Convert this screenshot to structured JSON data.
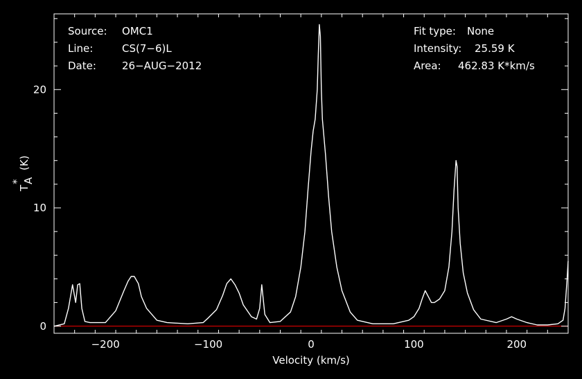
{
  "chart_data": {
    "type": "line",
    "xlabel": "Velocity (km/s)",
    "ylabel_main": "T",
    "ylabel_sub": "A",
    "ylabel_sup": "*",
    "ylabel_unit": "(K)",
    "xlim": [
      -250,
      250
    ],
    "ylim": [
      -0.6,
      26.4
    ],
    "x_ticks": [
      -200,
      -100,
      0,
      100,
      200
    ],
    "x_tick_labels": [
      "−200",
      "−100",
      "0",
      "100",
      "200"
    ],
    "y_ticks": [
      0,
      10,
      20
    ],
    "y_tick_labels": [
      "0",
      "10",
      "20"
    ],
    "baseline": 0,
    "colors": {
      "background": "#000000",
      "axes": "#ffffff",
      "spectrum": "#ffffff",
      "baseline": "#ff0000"
    },
    "info_left": [
      {
        "key": "Source:",
        "value": "OMC1"
      },
      {
        "key": "Line:",
        "value": "CS(7−6)L"
      },
      {
        "key": "Date:",
        "value": "26−AUG−2012"
      }
    ],
    "info_right": [
      {
        "key": "Fit type:",
        "value": "None"
      },
      {
        "key": "Intensity:",
        "value": "25.59 K"
      },
      {
        "key": "Area:",
        "value": "462.83 K*km/s"
      }
    ],
    "x": [
      -250,
      -240,
      -236,
      -232,
      -229,
      -227,
      -225,
      -223,
      -220,
      -215,
      -200,
      -190,
      -182,
      -178,
      -175,
      -172,
      -168,
      -165,
      -160,
      -150,
      -140,
      -120,
      -105,
      -100,
      -92,
      -86,
      -82,
      -78,
      -74,
      -70,
      -66,
      -58,
      -53,
      -50,
      -48,
      -45,
      -40,
      -30,
      -20,
      -15,
      -10,
      -6,
      -3,
      0,
      2,
      4,
      6,
      7,
      8,
      9,
      10,
      11,
      12,
      14,
      17,
      20,
      25,
      30,
      38,
      45,
      60,
      80,
      95,
      100,
      105,
      108,
      111,
      114,
      117,
      120,
      125,
      130,
      134,
      137,
      139,
      141,
      142,
      143,
      145,
      148,
      152,
      158,
      165,
      180,
      190,
      195,
      200,
      210,
      220,
      230,
      240,
      245,
      247,
      249,
      250
    ],
    "values": [
      0.0,
      0.2,
      1.5,
      3.5,
      2.0,
      3.5,
      3.6,
      1.5,
      0.4,
      0.3,
      0.3,
      1.3,
      3.0,
      3.8,
      4.2,
      4.2,
      3.6,
      2.5,
      1.5,
      0.5,
      0.3,
      0.2,
      0.3,
      0.7,
      1.4,
      2.6,
      3.6,
      4.0,
      3.5,
      2.8,
      1.8,
      0.8,
      0.6,
      1.5,
      3.5,
      1.0,
      0.3,
      0.4,
      1.2,
      2.5,
      5.0,
      8.0,
      11.5,
      14.8,
      16.5,
      17.5,
      20.0,
      23.0,
      25.5,
      24.5,
      20.0,
      17.5,
      16.5,
      14.5,
      11.0,
      8.0,
      5.0,
      3.0,
      1.2,
      0.5,
      0.2,
      0.2,
      0.5,
      0.8,
      1.5,
      2.3,
      3.0,
      2.5,
      2.0,
      2.0,
      2.3,
      3.0,
      5.0,
      8.0,
      11.5,
      14.0,
      13.5,
      10.0,
      7.0,
      4.5,
      2.8,
      1.4,
      0.6,
      0.3,
      0.6,
      0.8,
      0.6,
      0.3,
      0.1,
      0.1,
      0.2,
      0.5,
      1.5,
      4.0,
      5.5
    ]
  }
}
